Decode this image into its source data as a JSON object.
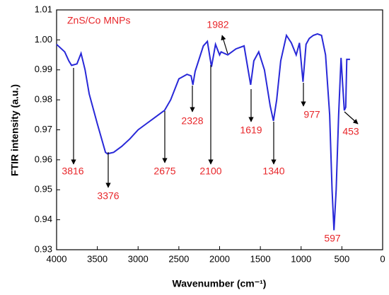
{
  "chart_data": {
    "type": "line",
    "xlabel": "Wavenumber (cm⁻¹)",
    "ylabel": "FTIR intensity (a.u.)",
    "color": "#2828d8",
    "annotation_color": "#e8262a",
    "xlim": [
      4000,
      0
    ],
    "ylim": [
      0.93,
      1.01
    ],
    "xticks": [
      4000,
      3500,
      3000,
      2500,
      2000,
      1500,
      1000,
      500,
      0
    ],
    "yticks": [
      0.93,
      0.94,
      0.95,
      0.96,
      0.97,
      0.98,
      0.99,
      {
        "value": 1,
        "label": "1.00"
      },
      1.01
    ],
    "x": [
      4000,
      3900,
      3850,
      3816,
      3750,
      3700,
      3650,
      3600,
      3500,
      3400,
      3376,
      3300,
      3200,
      3100,
      3000,
      2900,
      2800,
      2700,
      2675,
      2600,
      2500,
      2400,
      2350,
      2328,
      2300,
      2200,
      2150,
      2100,
      2050,
      2000,
      1982,
      1900,
      1800,
      1700,
      1650,
      1619,
      1580,
      1520,
      1450,
      1380,
      1340,
      1300,
      1250,
      1180,
      1120,
      1060,
      1020,
      977,
      940,
      900,
      850,
      800,
      750,
      700,
      650,
      620,
      597,
      570,
      540,
      510,
      490,
      470,
      453,
      440,
      400
    ],
    "values": [
      0.9985,
      0.996,
      0.993,
      0.9915,
      0.992,
      0.9955,
      0.99,
      0.982,
      0.972,
      0.9625,
      0.962,
      0.9625,
      0.9645,
      0.967,
      0.97,
      0.972,
      0.974,
      0.976,
      0.9765,
      0.98,
      0.987,
      0.9885,
      0.988,
      0.985,
      0.9895,
      0.998,
      0.9995,
      0.991,
      0.9985,
      0.995,
      0.996,
      0.995,
      0.997,
      0.998,
      0.99,
      0.985,
      0.993,
      0.996,
      0.99,
      0.978,
      0.973,
      0.98,
      0.993,
      1.0015,
      0.999,
      0.995,
      0.999,
      0.986,
      0.9985,
      1.0005,
      1.0015,
      1.002,
      1.0015,
      0.995,
      0.975,
      0.95,
      0.9365,
      0.95,
      0.975,
      0.994,
      0.985,
      0.9765,
      0.9775,
      0.9935,
      0.9935
    ],
    "legend": "ZnS/Co MNPs",
    "annotations": [
      "3816",
      "3376",
      "2675",
      "2328",
      "2100",
      "1982",
      "1619",
      "1340",
      "977",
      "597",
      "453"
    ]
  }
}
